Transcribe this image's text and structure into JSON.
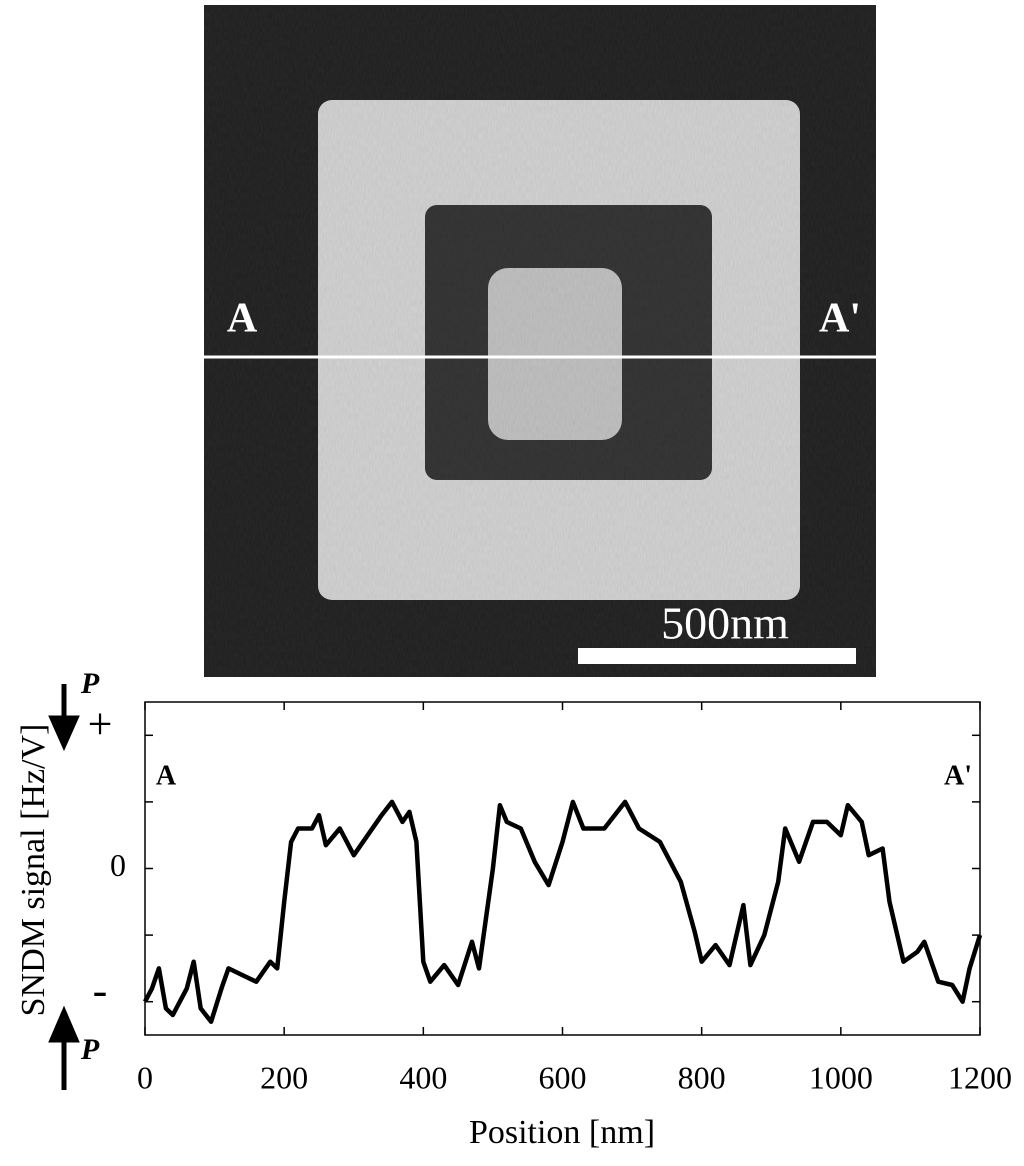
{
  "image": {
    "left_label": "A",
    "right_label": "A'",
    "scale_bar_label": "500nm"
  },
  "chart_data": {
    "type": "line",
    "x_label": "Position [nm]",
    "y_label": "SNDM signal [Hz/V]",
    "annotations": [
      "A",
      "A'"
    ],
    "polarization_labels": [
      "P",
      "P"
    ],
    "x": [
      0,
      10,
      20,
      30,
      40,
      50,
      60,
      70,
      80,
      95,
      110,
      120,
      140,
      160,
      180,
      190,
      200,
      210,
      220,
      240,
      250,
      260,
      280,
      300,
      320,
      340,
      355,
      370,
      380,
      390,
      400,
      410,
      430,
      450,
      470,
      480,
      500,
      510,
      520,
      540,
      560,
      580,
      600,
      615,
      630,
      660,
      690,
      710,
      740,
      770,
      790,
      800,
      820,
      840,
      860,
      870,
      890,
      910,
      920,
      940,
      960,
      980,
      1000,
      1010,
      1030,
      1040,
      1060,
      1070,
      1090,
      1110,
      1120,
      1140,
      1160,
      1175,
      1185,
      1200
    ],
    "series": [
      {
        "name": "SNDM signal",
        "color": "#000000",
        "values": [
          -2.0,
          -1.8,
          -1.5,
          -2.1,
          -2.2,
          -2.0,
          -1.8,
          -1.4,
          -2.1,
          -2.3,
          -1.8,
          -1.5,
          -1.6,
          -1.7,
          -1.4,
          -1.5,
          -0.5,
          0.4,
          0.6,
          0.6,
          0.8,
          0.35,
          0.6,
          0.2,
          0.5,
          0.8,
          1.0,
          0.7,
          0.85,
          0.4,
          -1.4,
          -1.7,
          -1.45,
          -1.75,
          -1.1,
          -1.5,
          0.0,
          0.95,
          0.7,
          0.6,
          0.1,
          -0.25,
          0.4,
          1.0,
          0.6,
          0.6,
          1.0,
          0.6,
          0.4,
          -0.2,
          -0.95,
          -1.4,
          -1.15,
          -1.45,
          -0.55,
          -1.45,
          -1.0,
          -0.2,
          0.6,
          0.1,
          0.7,
          0.7,
          0.5,
          0.95,
          0.7,
          0.2,
          0.3,
          -0.5,
          -1.4,
          -1.25,
          -1.1,
          -1.7,
          -1.75,
          -2.0,
          -1.5,
          -1.0
        ]
      }
    ],
    "xlim": [
      0,
      1200
    ],
    "xticks": [
      0,
      200,
      400,
      600,
      800,
      1000,
      1200
    ],
    "ylim": [
      -2.5,
      2.5
    ],
    "yticks": [
      {
        "value": 2,
        "label": "+"
      },
      0,
      {
        "value": -2,
        "label": "-"
      }
    ],
    "minor_yticks": [
      -1,
      1
    ]
  }
}
